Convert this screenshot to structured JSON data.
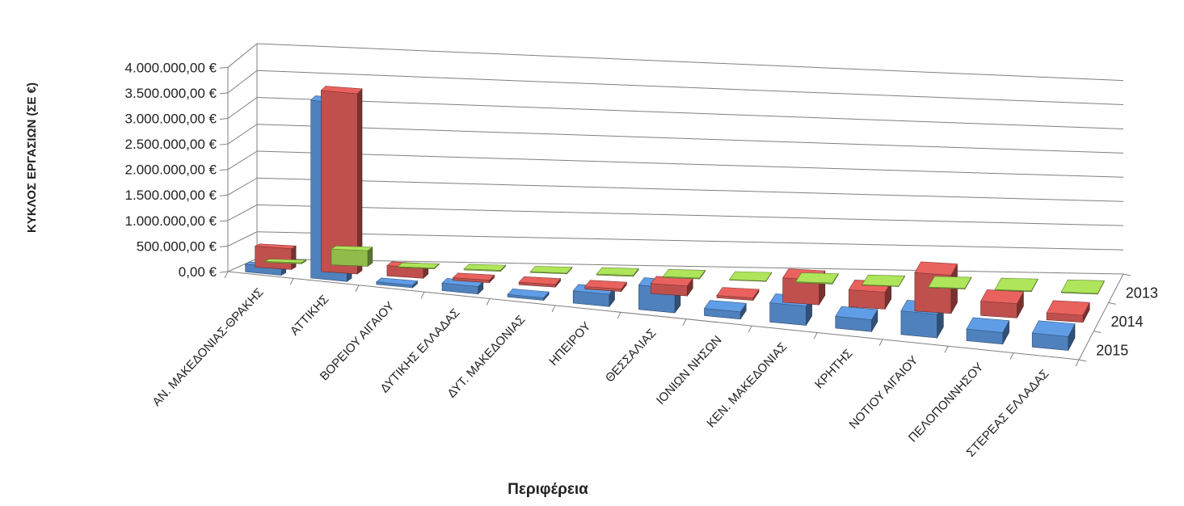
{
  "chart_data": {
    "type": "bar",
    "variant": "3d-column",
    "title": "",
    "xlabel": "Περιφέρεια",
    "ylabel": "ΚΥΚΛΟΣ ΕΡΓΑΣΙΩΝ (ΣΕ €)",
    "ylim": [
      0,
      4000000
    ],
    "yticks": [
      "0,00 €",
      "500.000,00 €",
      "1.000.000,00 €",
      "1.500.000,00 €",
      "2.000.000,00 €",
      "2.500.000,00 €",
      "3.000.000,00 €",
      "3.500.000,00 €",
      "4.000.000,00 €"
    ],
    "grid": true,
    "categories": [
      "ΑΝ. ΜΑΚΕΔΟΝΙΑΣ-ΘΡΑΚΗΣ",
      "ΑΤΤΙΚΗΣ",
      "ΒΟΡΕΙΟΥ ΑΙΓΑΙΟΥ",
      "ΔΥΤΙΚΗΣ ΕΛΛΑΔΑΣ",
      "ΔΥΤ. ΜΑΚΕΔΟΝΙΑΣ",
      "ΗΠΕΙΡΟΥ",
      "ΘΕΣΣΑΛΙΑΣ",
      "ΙΟΝΙΩΝ ΝΗΣΩΝ",
      "ΚΕΝ. ΜΑΚΕΔΟΝΙΑΣ",
      "ΚΡΗΤΗΣ",
      "ΝΟΤΙΟΥ ΑΙΓΑΙΟΥ",
      "ΠΕΛΟΠΟΝΝΗΣΟΥ",
      "ΣΤΕΡΕΑΣ ΕΛΛΑΔΑΣ"
    ],
    "series": [
      {
        "name": "2013",
        "color": "#8fbc4a",
        "values": [
          20000,
          300000,
          15000,
          20000,
          15000,
          20000,
          20000,
          10000,
          20000,
          10000,
          15000,
          15000,
          15000
        ]
      },
      {
        "name": "2014",
        "color": "#c0504d",
        "values": [
          400000,
          3500000,
          200000,
          50000,
          50000,
          50000,
          200000,
          50000,
          500000,
          350000,
          800000,
          300000,
          150000
        ]
      },
      {
        "name": "2015",
        "color": "#4f81bd",
        "values": [
          150000,
          3500000,
          50000,
          150000,
          50000,
          250000,
          500000,
          150000,
          400000,
          250000,
          500000,
          250000,
          300000
        ]
      }
    ]
  }
}
